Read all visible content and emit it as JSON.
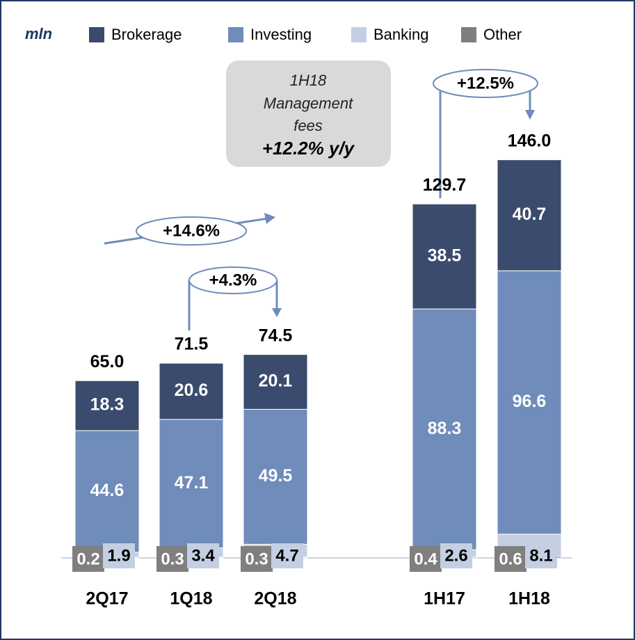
{
  "chart_data": {
    "type": "stacked_bar",
    "unit_label": "mln",
    "categories": [
      "2Q17",
      "1Q18",
      "2Q18",
      "1H17",
      "1H18"
    ],
    "series": [
      {
        "name": "Brokerage",
        "color": "#3a4b6d",
        "values": [
          18.3,
          20.6,
          20.1,
          38.5,
          40.7
        ]
      },
      {
        "name": "Investing",
        "color": "#6f8cba",
        "values": [
          44.6,
          47.1,
          49.5,
          88.3,
          96.6
        ]
      },
      {
        "name": "Banking",
        "color": "#c5cfe3",
        "values": [
          1.9,
          3.4,
          4.7,
          2.6,
          8.1
        ]
      },
      {
        "name": "Other",
        "color": "#7f7f7f",
        "values": [
          0.2,
          0.3,
          0.3,
          0.4,
          0.6
        ]
      }
    ],
    "totals": [
      65,
      71.5,
      74.5,
      129.7,
      146
    ],
    "total_labels": [
      "65.0",
      "71.5",
      "74.5",
      "129.7",
      "146.0"
    ],
    "callout": [
      "1H18",
      "Management",
      "fees",
      "+12.2% y/y"
    ],
    "growth_labels": [
      "+14.6%",
      "+4.3%",
      "+12.5%"
    ]
  }
}
